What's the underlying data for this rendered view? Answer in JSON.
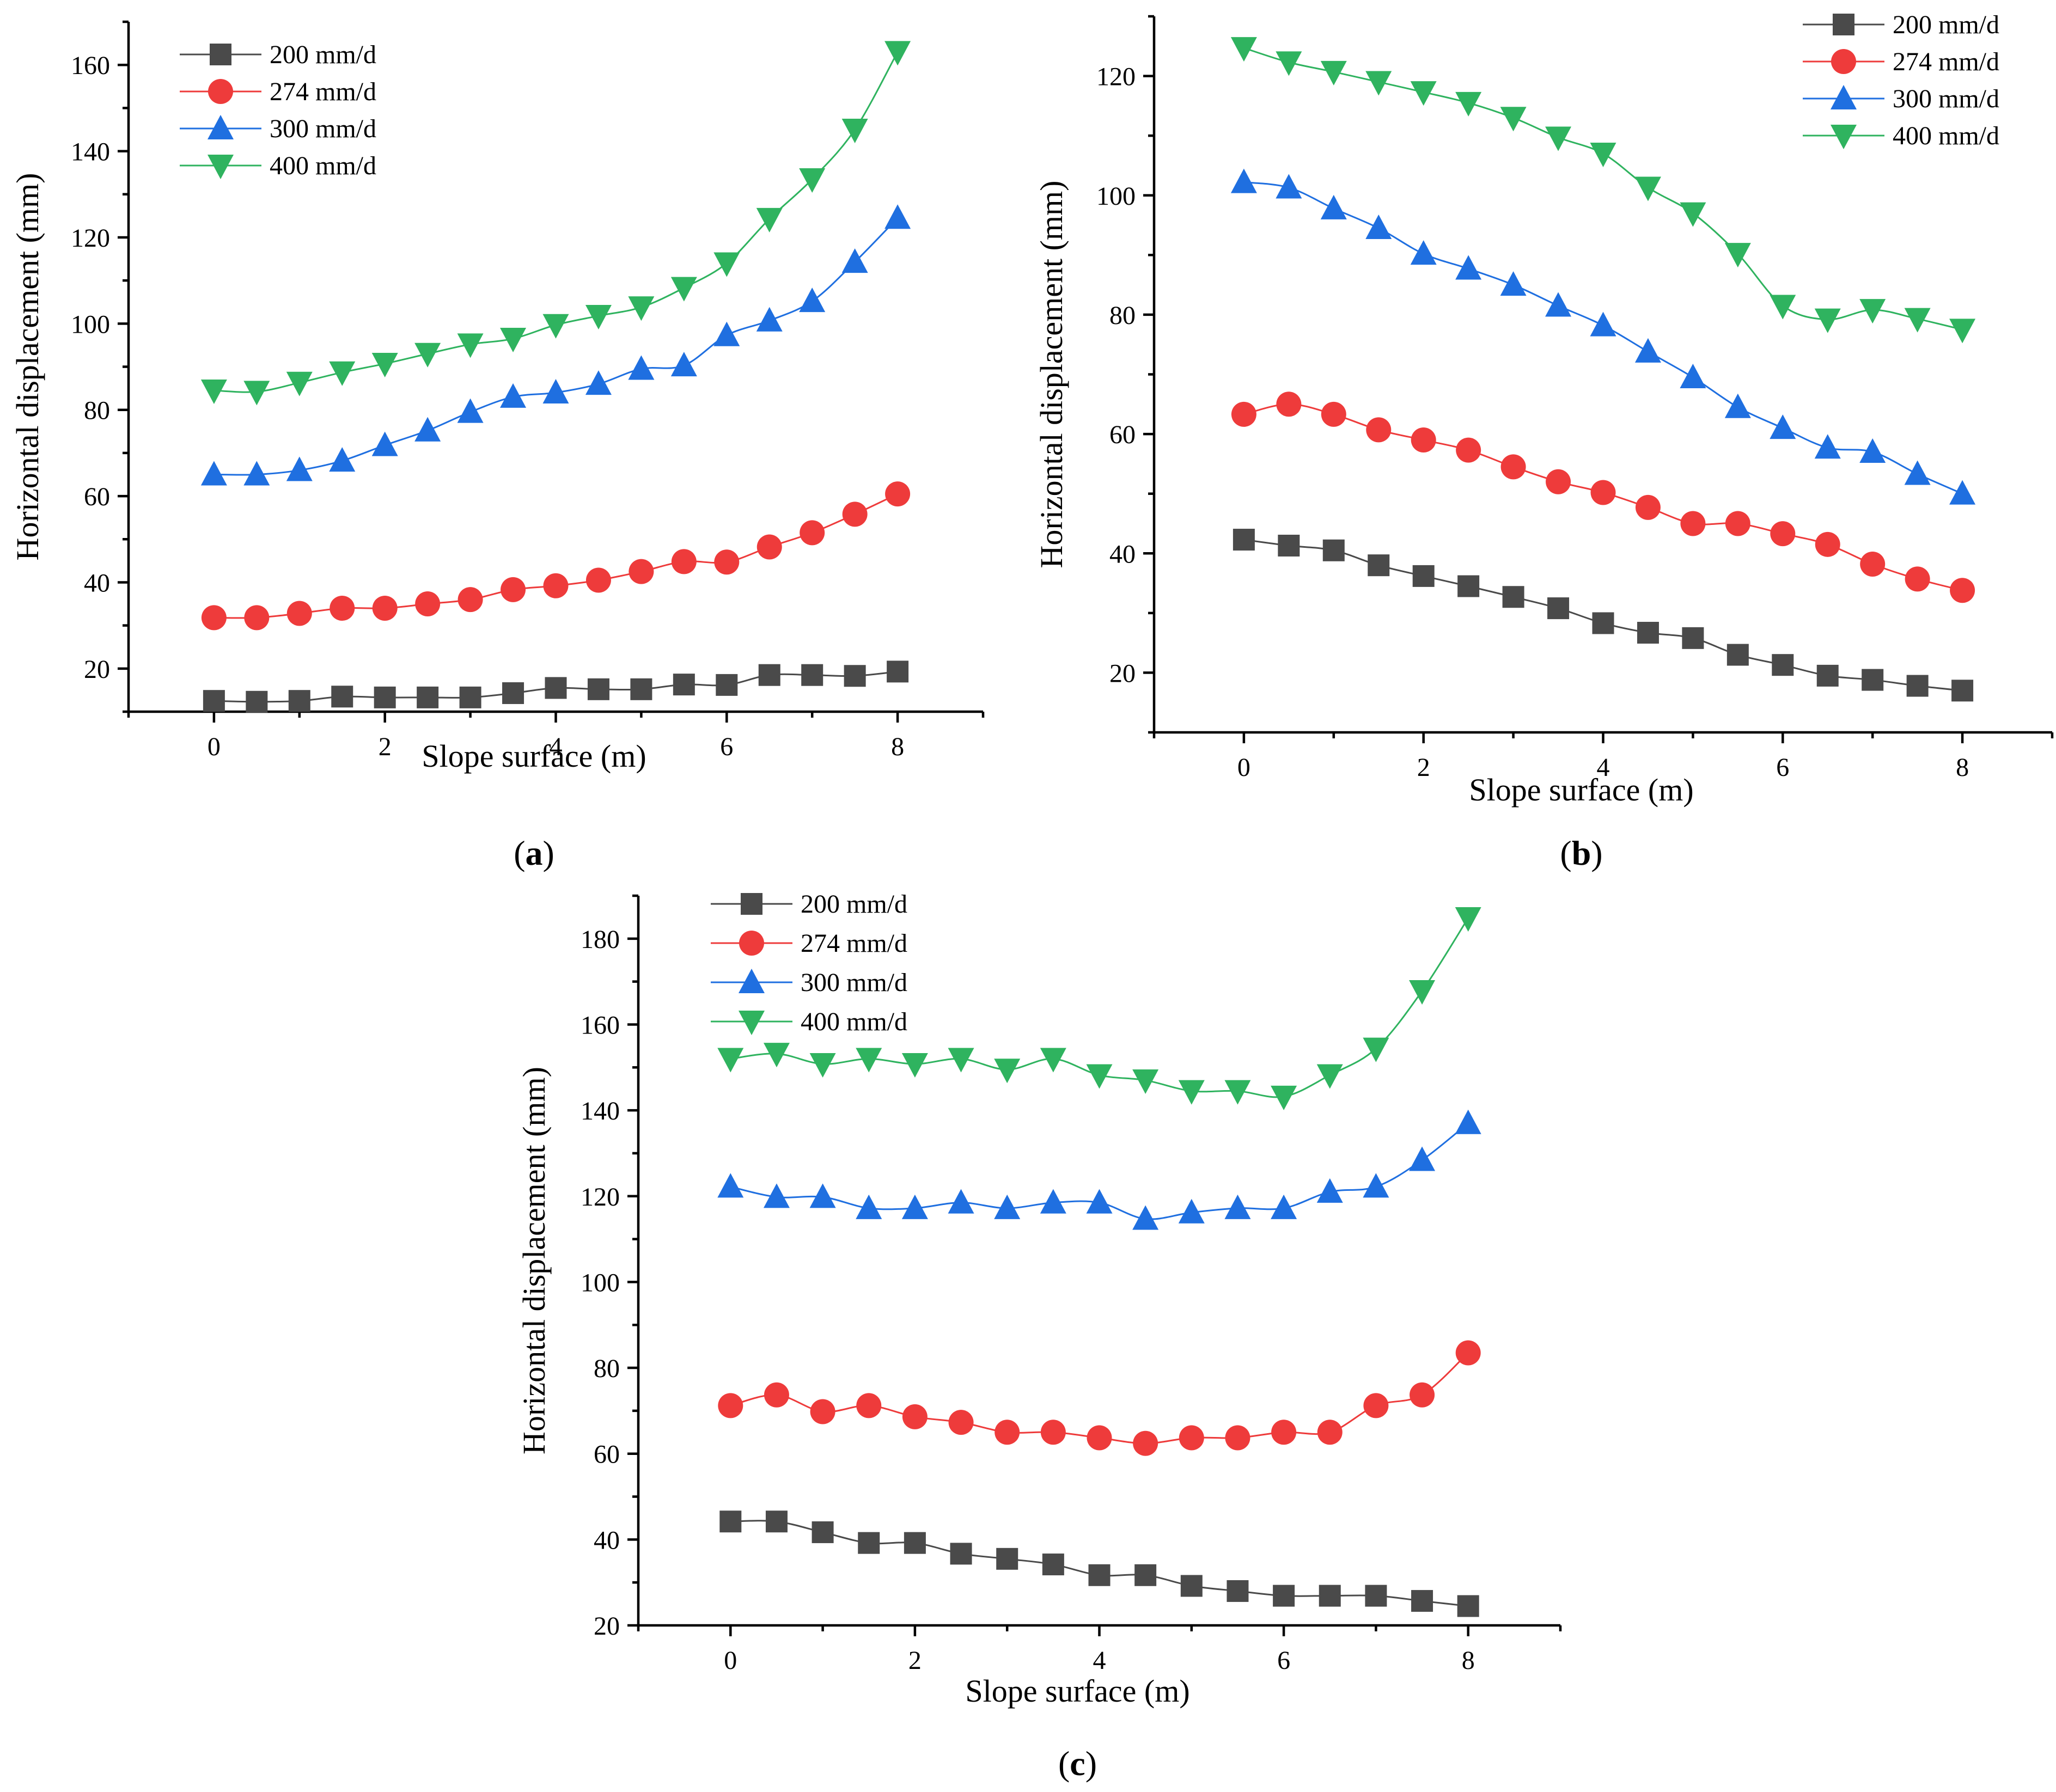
{
  "colors": {
    "s200": "#4a4a4a",
    "s274": "#ee3b3b",
    "s300": "#1f6fe0",
    "s400": "#2fb35f"
  },
  "chart_data": [
    {
      "id": "a",
      "type": "line",
      "panel_label": "a",
      "xlabel": "Slope surface (m)",
      "ylabel": "Horizontal displacement (mm)",
      "xlim": [
        -1,
        9
      ],
      "ylim": [
        10,
        170
      ],
      "xticks": [
        0,
        2,
        4,
        6,
        8
      ],
      "yticks": [
        20,
        40,
        60,
        80,
        100,
        120,
        140,
        160
      ],
      "legend_position": "top-left",
      "x": [
        0,
        0.5,
        1,
        1.5,
        2,
        2.5,
        3,
        3.5,
        4,
        4.5,
        5,
        5.5,
        6,
        6.5,
        7,
        7.5,
        8
      ],
      "series": [
        {
          "name": "200 mm/d",
          "marker": "square",
          "color_key": "s200",
          "values": [
            12.5,
            12.3,
            12.5,
            13.5,
            13.3,
            13.3,
            13.3,
            14.3,
            15.5,
            15.2,
            15.2,
            16.3,
            16.2,
            18.5,
            18.5,
            18.3,
            19.3
          ]
        },
        {
          "name": "274 mm/d",
          "marker": "circle",
          "color_key": "s274",
          "values": [
            31.8,
            31.8,
            32.8,
            34,
            34,
            35,
            36,
            38.3,
            39.2,
            40.5,
            42.5,
            44.8,
            44.7,
            48.2,
            51.5,
            55.8,
            60.5
          ]
        },
        {
          "name": "300 mm/d",
          "marker": "triangle-up",
          "color_key": "s300",
          "values": [
            65,
            65,
            66,
            68.2,
            71.8,
            75.2,
            79.5,
            83,
            84,
            86,
            89.5,
            90.3,
            97.3,
            100.7,
            105.2,
            114.3,
            124.5
          ]
        },
        {
          "name": "400 mm/d",
          "marker": "triangle-down",
          "color_key": "s400",
          "values": [
            84.5,
            84.2,
            86.3,
            88.7,
            90.7,
            93,
            95.2,
            96.5,
            99.7,
            101.8,
            103.8,
            108.3,
            114,
            124.3,
            133.5,
            145,
            163
          ]
        }
      ]
    },
    {
      "id": "b",
      "type": "line",
      "panel_label": "b",
      "xlabel": "Slope surface (m)",
      "ylabel": "Horizontal displacement (mm)",
      "xlim": [
        -1,
        9
      ],
      "ylim": [
        10,
        130
      ],
      "xticks": [
        0,
        2,
        4,
        6,
        8
      ],
      "yticks": [
        20,
        40,
        60,
        80,
        100,
        120
      ],
      "legend_position": "top-right",
      "x": [
        0,
        0.5,
        1,
        1.5,
        2,
        2.5,
        3,
        3.5,
        4,
        4.5,
        5,
        5.5,
        6,
        6.5,
        7,
        7.5,
        8
      ],
      "series": [
        {
          "name": "200 mm/d",
          "marker": "square",
          "color_key": "s200",
          "values": [
            42.3,
            41.3,
            40.5,
            38,
            36.2,
            34.5,
            32.7,
            30.8,
            28.3,
            26.7,
            25.8,
            23,
            21.3,
            19.5,
            18.8,
            17.8,
            17
          ]
        },
        {
          "name": "274 mm/d",
          "marker": "circle",
          "color_key": "s274",
          "values": [
            63.3,
            65,
            63.3,
            60.7,
            59,
            57.3,
            54.5,
            52,
            50.2,
            47.7,
            45,
            45,
            43.3,
            41.5,
            38.2,
            35.7,
            33.8
          ]
        },
        {
          "name": "300 mm/d",
          "marker": "triangle-up",
          "color_key": "s300",
          "values": [
            102.2,
            101.3,
            97.8,
            94.5,
            90.2,
            87.7,
            85,
            81.5,
            78.2,
            73.8,
            69.5,
            64.5,
            61,
            57.7,
            57,
            53.3,
            50
          ]
        },
        {
          "name": "400 mm/d",
          "marker": "triangle-down",
          "color_key": "s400",
          "values": [
            124.7,
            122.3,
            120.7,
            119,
            117.3,
            115.5,
            113,
            109.7,
            107,
            101.3,
            97,
            90.2,
            81.5,
            79.2,
            80.8,
            79.3,
            77.5
          ]
        }
      ]
    },
    {
      "id": "c",
      "type": "line",
      "panel_label": "c",
      "xlabel": "Slope surface (m)",
      "ylabel": "Horizontal displacement (mm)",
      "xlim": [
        -1,
        9
      ],
      "ylim": [
        20,
        190
      ],
      "xticks": [
        0,
        2,
        4,
        6,
        8
      ],
      "yticks": [
        20,
        40,
        60,
        80,
        100,
        120,
        140,
        160,
        180
      ],
      "legend_position": "top-left",
      "x": [
        0,
        0.5,
        1,
        1.5,
        2,
        2.5,
        3,
        3.5,
        4,
        4.5,
        5,
        5.5,
        6,
        6.5,
        7,
        7.5,
        8
      ],
      "series": [
        {
          "name": "200 mm/d",
          "marker": "square",
          "color_key": "s200",
          "values": [
            44.2,
            44.2,
            41.7,
            39.2,
            39.2,
            36.7,
            35.5,
            34.2,
            31.7,
            31.7,
            29.2,
            28,
            26.9,
            26.9,
            26.9,
            25.7,
            24.5
          ]
        },
        {
          "name": "274 mm/d",
          "marker": "circle",
          "color_key": "s274",
          "values": [
            71.2,
            73.7,
            69.8,
            71.2,
            68.6,
            67.3,
            65,
            65,
            63.7,
            62.4,
            63.7,
            63.7,
            65,
            65,
            71.2,
            73.7,
            83.5
          ]
        },
        {
          "name": "300 mm/d",
          "marker": "triangle-up",
          "color_key": "s300",
          "values": [
            122.2,
            119.8,
            119.8,
            117.2,
            117.2,
            118.5,
            117.2,
            118.5,
            118.5,
            114.7,
            116.2,
            117.2,
            117.2,
            121,
            122.2,
            128.4,
            137
          ]
        },
        {
          "name": "400 mm/d",
          "marker": "triangle-down",
          "color_key": "s400",
          "values": [
            152,
            153.2,
            150.8,
            152,
            150.8,
            152,
            149.5,
            152,
            148.2,
            147,
            144.5,
            144.5,
            143.2,
            148.2,
            154.4,
            167.8,
            184.8
          ]
        }
      ]
    }
  ]
}
